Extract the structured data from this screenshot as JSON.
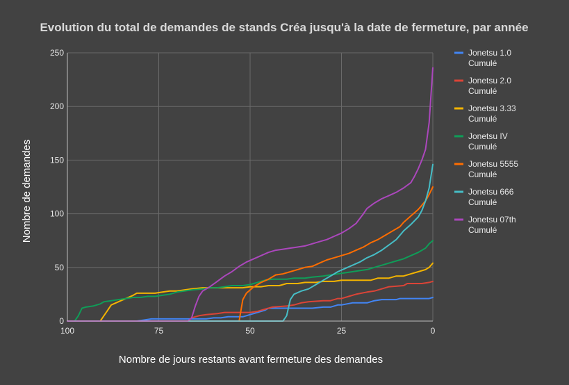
{
  "chart_data": {
    "type": "line",
    "title": "Evolution du total de demandes de stands Créa jusqu'à la date de fermeture, par année",
    "xlabel": "Nombre de jours restants avant fermeture des demandes",
    "ylabel": "Nombre de demandes",
    "xlim": [
      100,
      0
    ],
    "x_reversed": true,
    "ylim": [
      0,
      250
    ],
    "xticks": [
      100,
      75,
      50,
      25,
      0
    ],
    "yticks": [
      0,
      50,
      100,
      150,
      200,
      250
    ],
    "grid": true,
    "legend": "right",
    "series": [
      {
        "name": "Jonetsu 1.0 Cumulé",
        "color": "#4285f4",
        "points": [
          [
            81,
            0
          ],
          [
            79,
            1
          ],
          [
            77,
            2
          ],
          [
            72,
            2
          ],
          [
            68,
            2
          ],
          [
            64,
            2
          ],
          [
            62,
            2
          ],
          [
            60,
            3
          ],
          [
            58,
            3
          ],
          [
            56,
            4
          ],
          [
            52,
            4
          ],
          [
            51,
            5
          ],
          [
            50,
            6
          ],
          [
            49,
            7
          ],
          [
            47,
            9
          ],
          [
            46,
            10
          ],
          [
            45,
            12
          ],
          [
            40,
            12
          ],
          [
            35,
            12
          ],
          [
            33,
            12
          ],
          [
            30,
            13
          ],
          [
            28,
            13
          ],
          [
            26,
            15
          ],
          [
            25,
            15
          ],
          [
            22,
            17
          ],
          [
            18,
            17
          ],
          [
            16,
            19
          ],
          [
            14,
            20
          ],
          [
            10,
            20
          ],
          [
            9,
            21
          ],
          [
            5,
            21
          ],
          [
            1,
            21
          ],
          [
            0,
            22
          ]
        ]
      },
      {
        "name": "Jonetsu 2.0 Cumulé",
        "color": "#db4437",
        "points": [
          [
            67,
            0
          ],
          [
            66,
            3
          ],
          [
            65,
            4
          ],
          [
            64,
            5
          ],
          [
            62,
            6
          ],
          [
            59,
            7
          ],
          [
            57,
            8
          ],
          [
            50,
            8
          ],
          [
            48,
            9
          ],
          [
            46,
            11
          ],
          [
            44,
            13
          ],
          [
            40,
            14
          ],
          [
            38,
            15
          ],
          [
            36,
            17
          ],
          [
            34,
            18
          ],
          [
            30,
            19
          ],
          [
            28,
            19
          ],
          [
            26,
            21
          ],
          [
            25,
            21
          ],
          [
            23,
            23
          ],
          [
            21,
            25
          ],
          [
            18,
            27
          ],
          [
            16,
            28
          ],
          [
            14,
            30
          ],
          [
            12,
            32
          ],
          [
            8,
            33
          ],
          [
            7,
            35
          ],
          [
            3,
            35
          ],
          [
            1,
            36
          ],
          [
            0,
            37
          ]
        ]
      },
      {
        "name": "Jonetsu 3.33 Cumulé",
        "color": "#f4b400",
        "points": [
          [
            91,
            0
          ],
          [
            90,
            5
          ],
          [
            89,
            10
          ],
          [
            88,
            15
          ],
          [
            86,
            18
          ],
          [
            84,
            21
          ],
          [
            82,
            24
          ],
          [
            81,
            26
          ],
          [
            79,
            26
          ],
          [
            76,
            26
          ],
          [
            74,
            27
          ],
          [
            72,
            28
          ],
          [
            70,
            28
          ],
          [
            68,
            29
          ],
          [
            66,
            30
          ],
          [
            63,
            31
          ],
          [
            60,
            31
          ],
          [
            57,
            31
          ],
          [
            55,
            31
          ],
          [
            52,
            31
          ],
          [
            50,
            32
          ],
          [
            47,
            32
          ],
          [
            45,
            33
          ],
          [
            42,
            33
          ],
          [
            40,
            35
          ],
          [
            37,
            35
          ],
          [
            35,
            36
          ],
          [
            32,
            36
          ],
          [
            30,
            37
          ],
          [
            27,
            37
          ],
          [
            25,
            38
          ],
          [
            22,
            38
          ],
          [
            20,
            38
          ],
          [
            17,
            38
          ],
          [
            15,
            40
          ],
          [
            12,
            40
          ],
          [
            10,
            42
          ],
          [
            8,
            42
          ],
          [
            6,
            44
          ],
          [
            4,
            46
          ],
          [
            2,
            48
          ],
          [
            1,
            50
          ],
          [
            0,
            54
          ]
        ]
      },
      {
        "name": "Jonetsu IV Cumulé",
        "color": "#0f9d58",
        "points": [
          [
            100,
            0
          ],
          [
            98,
            0
          ],
          [
            97,
            5
          ],
          [
            96,
            12
          ],
          [
            95,
            13
          ],
          [
            93,
            14
          ],
          [
            91,
            16
          ],
          [
            90,
            18
          ],
          [
            88,
            19
          ],
          [
            86,
            20
          ],
          [
            84,
            21
          ],
          [
            82,
            22
          ],
          [
            80,
            22
          ],
          [
            78,
            23
          ],
          [
            76,
            23
          ],
          [
            74,
            24
          ],
          [
            72,
            25
          ],
          [
            70,
            27
          ],
          [
            68,
            28
          ],
          [
            66,
            29
          ],
          [
            63,
            30
          ],
          [
            61,
            31
          ],
          [
            59,
            31
          ],
          [
            57,
            32
          ],
          [
            55,
            33
          ],
          [
            52,
            33
          ],
          [
            50,
            34
          ],
          [
            48,
            36
          ],
          [
            46,
            38
          ],
          [
            44,
            39
          ],
          [
            42,
            39
          ],
          [
            40,
            39
          ],
          [
            38,
            40
          ],
          [
            35,
            40
          ],
          [
            33,
            41
          ],
          [
            30,
            42
          ],
          [
            28,
            43
          ],
          [
            26,
            44
          ],
          [
            24,
            45
          ],
          [
            22,
            46
          ],
          [
            20,
            47
          ],
          [
            18,
            48
          ],
          [
            16,
            50
          ],
          [
            14,
            52
          ],
          [
            12,
            54
          ],
          [
            10,
            56
          ],
          [
            8,
            58
          ],
          [
            6,
            61
          ],
          [
            4,
            64
          ],
          [
            2,
            68
          ],
          [
            1,
            72
          ],
          [
            0,
            75
          ]
        ]
      },
      {
        "name": "Jonetsu 5555 Cumulé",
        "color": "#ff6d00",
        "points": [
          [
            53,
            0
          ],
          [
            52,
            20
          ],
          [
            51,
            26
          ],
          [
            50,
            29
          ],
          [
            49,
            32
          ],
          [
            47,
            36
          ],
          [
            45,
            39
          ],
          [
            43,
            43
          ],
          [
            41,
            44
          ],
          [
            39,
            46
          ],
          [
            37,
            48
          ],
          [
            35,
            50
          ],
          [
            33,
            51
          ],
          [
            31,
            54
          ],
          [
            29,
            57
          ],
          [
            27,
            59
          ],
          [
            25,
            61
          ],
          [
            23,
            63
          ],
          [
            21,
            66
          ],
          [
            19,
            69
          ],
          [
            17,
            73
          ],
          [
            15,
            76
          ],
          [
            13,
            80
          ],
          [
            11,
            84
          ],
          [
            9,
            88
          ],
          [
            8,
            92
          ],
          [
            6,
            98
          ],
          [
            4,
            104
          ],
          [
            2,
            112
          ],
          [
            1,
            118
          ],
          [
            0,
            125
          ]
        ]
      },
      {
        "name": "Jonetsu 666 Cumulé",
        "color": "#46bdc6",
        "points": [
          [
            41,
            0
          ],
          [
            40,
            5
          ],
          [
            39,
            20
          ],
          [
            38,
            25
          ],
          [
            36,
            28
          ],
          [
            34,
            30
          ],
          [
            32,
            34
          ],
          [
            30,
            38
          ],
          [
            28,
            42
          ],
          [
            26,
            46
          ],
          [
            24,
            49
          ],
          [
            22,
            52
          ],
          [
            20,
            55
          ],
          [
            18,
            59
          ],
          [
            16,
            62
          ],
          [
            14,
            66
          ],
          [
            12,
            71
          ],
          [
            10,
            76
          ],
          [
            9,
            80
          ],
          [
            8,
            84
          ],
          [
            6,
            90
          ],
          [
            4,
            97
          ],
          [
            3,
            103
          ],
          [
            2,
            112
          ],
          [
            1,
            124
          ],
          [
            0,
            146
          ]
        ]
      },
      {
        "name": "Jonetsu 07th Cumulé",
        "color": "#ab47bc",
        "points": [
          [
            67,
            0
          ],
          [
            66,
            3
          ],
          [
            65,
            14
          ],
          [
            64,
            23
          ],
          [
            63,
            28
          ],
          [
            61,
            32
          ],
          [
            59,
            37
          ],
          [
            57,
            42
          ],
          [
            55,
            46
          ],
          [
            53,
            51
          ],
          [
            51,
            55
          ],
          [
            49,
            58
          ],
          [
            47,
            61
          ],
          [
            45,
            64
          ],
          [
            43,
            66
          ],
          [
            41,
            67
          ],
          [
            39,
            68
          ],
          [
            37,
            69
          ],
          [
            35,
            70
          ],
          [
            33,
            72
          ],
          [
            31,
            74
          ],
          [
            29,
            76
          ],
          [
            27,
            79
          ],
          [
            25,
            82
          ],
          [
            23,
            86
          ],
          [
            21,
            91
          ],
          [
            19,
            100
          ],
          [
            18,
            105
          ],
          [
            16,
            110
          ],
          [
            14,
            114
          ],
          [
            12,
            117
          ],
          [
            10,
            120
          ],
          [
            8,
            124
          ],
          [
            6,
            129
          ],
          [
            5,
            135
          ],
          [
            4,
            142
          ],
          [
            3,
            150
          ],
          [
            2,
            160
          ],
          [
            1,
            185
          ],
          [
            0,
            236
          ]
        ]
      }
    ]
  }
}
